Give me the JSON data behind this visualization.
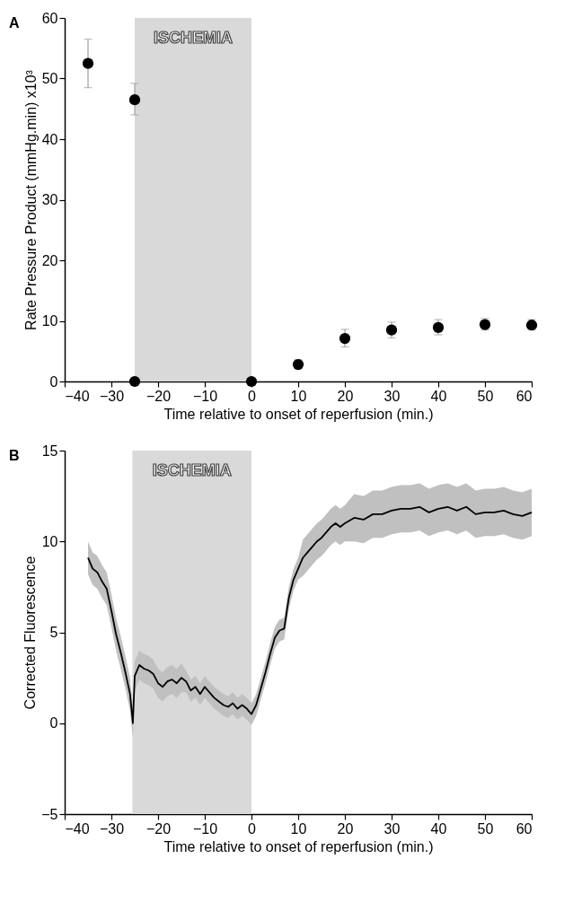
{
  "chart_data": [
    {
      "type": "scatter",
      "annotations": [
        "A"
      ],
      "xlabel": "Time relative to onset of reperfusion (min.)",
      "ylabel": "Rate Pressure Product (mmHg.min) x10³",
      "marker": "circle",
      "x": [
        -35,
        -25,
        -25,
        0,
        10,
        20,
        30,
        40,
        50,
        60
      ],
      "series": [
        {
          "color": "#000000",
          "values": [
            52.5,
            46.5,
            0,
            0,
            2.8,
            7.1,
            8.5,
            8.9,
            9.4,
            9.3
          ],
          "errors": [
            [
              48.5,
              56.5
            ],
            [
              44,
              49.2
            ],
            null,
            null,
            [
              2.1,
              3.6
            ],
            [
              5.7,
              8.6
            ],
            [
              7.2,
              9.8
            ],
            [
              7.7,
              10.2
            ],
            [
              8.5,
              10.4
            ],
            [
              8.5,
              10.2
            ]
          ]
        }
      ],
      "xlim": [
        -40,
        60
      ],
      "xticks": [
        -40,
        -30,
        -20,
        -10,
        0,
        10,
        20,
        30,
        40,
        50,
        60
      ],
      "ylim": [
        0,
        60
      ],
      "yticks": [
        0,
        10,
        20,
        30,
        40,
        50,
        60
      ],
      "grid": false,
      "bands": [
        {
          "axis": "x",
          "from": -25,
          "to": 0,
          "label": "ISCHEMIA",
          "color": "#d9d9d9"
        }
      ]
    },
    {
      "type": "line",
      "annotations": [
        "B"
      ],
      "xlabel": "Time relative to onset of reperfusion (min.)",
      "ylabel": "Corrected Fluorescence",
      "line_style": "solid",
      "x": [
        -35,
        -34,
        -33,
        -32,
        -31,
        -30,
        -29,
        -28,
        -27,
        -26,
        -25.4,
        -25,
        -24,
        -23,
        -22,
        -21,
        -20,
        -19,
        -18,
        -17,
        -16,
        -15,
        -14,
        -13,
        -12,
        -11,
        -10,
        -9,
        -8,
        -7,
        -6,
        -5,
        -4,
        -3,
        -2,
        -1,
        0,
        1,
        2,
        3,
        4,
        5,
        6,
        7,
        8,
        9,
        10,
        11,
        12,
        13,
        14,
        15,
        16,
        17,
        18,
        19,
        20,
        22,
        24,
        26,
        28,
        30,
        32,
        34,
        36,
        38,
        40,
        42,
        44,
        46,
        48,
        50,
        52,
        54,
        56,
        58,
        60
      ],
      "series": [
        {
          "color": "#000000",
          "values": [
            9.1,
            8.5,
            8.3,
            7.8,
            7.4,
            6.2,
            4.9,
            3.9,
            2.8,
            1.6,
            0.0,
            2.6,
            3.2,
            3.0,
            2.9,
            2.7,
            2.2,
            2.0,
            2.3,
            2.4,
            2.2,
            2.5,
            2.3,
            1.8,
            2.0,
            1.6,
            2.0,
            1.7,
            1.4,
            1.2,
            1.0,
            0.9,
            1.1,
            0.8,
            1.0,
            0.8,
            0.5,
            1.0,
            1.9,
            2.8,
            3.8,
            4.7,
            5.1,
            5.2,
            6.9,
            7.9,
            8.5,
            9.1,
            9.4,
            9.7,
            10.0,
            10.2,
            10.5,
            10.8,
            11.0,
            10.8,
            11.0,
            11.3,
            11.2,
            11.5,
            11.5,
            11.7,
            11.8,
            11.8,
            11.9,
            11.6,
            11.8,
            11.9,
            11.7,
            11.9,
            11.5,
            11.6,
            11.6,
            11.7,
            11.5,
            11.4,
            11.6
          ],
          "lower": [
            8.2,
            7.6,
            7.4,
            6.9,
            6.5,
            5.3,
            4.0,
            3.0,
            1.9,
            0.7,
            -0.8,
            1.8,
            2.4,
            2.2,
            2.1,
            1.9,
            1.4,
            1.2,
            1.5,
            1.6,
            1.4,
            1.7,
            1.7,
            1.2,
            1.4,
            1.0,
            1.4,
            1.1,
            0.8,
            0.6,
            0.4,
            0.3,
            0.5,
            0.2,
            0.4,
            0.2,
            -0.1,
            0.4,
            1.3,
            2.2,
            3.2,
            4.1,
            4.5,
            4.6,
            6.3,
            7.3,
            7.9,
            8.1,
            8.4,
            8.7,
            9.0,
            9.2,
            9.5,
            9.8,
            10.0,
            9.8,
            10.0,
            10.0,
            9.9,
            10.2,
            10.2,
            10.4,
            10.5,
            10.5,
            10.6,
            10.3,
            10.5,
            10.6,
            10.4,
            10.6,
            10.2,
            10.3,
            10.3,
            10.4,
            10.2,
            10.1,
            10.3
          ],
          "upper": [
            10.0,
            9.4,
            9.2,
            8.7,
            8.3,
            7.1,
            5.8,
            4.8,
            3.7,
            2.5,
            0.9,
            3.4,
            4.0,
            3.8,
            3.7,
            3.5,
            3.0,
            2.8,
            3.1,
            3.2,
            3.0,
            3.3,
            2.9,
            2.4,
            2.6,
            2.2,
            2.6,
            2.3,
            2.0,
            1.8,
            1.6,
            1.5,
            1.7,
            1.4,
            1.6,
            1.4,
            1.1,
            1.6,
            2.5,
            3.4,
            4.4,
            5.3,
            5.7,
            5.8,
            7.5,
            8.5,
            9.1,
            10.1,
            10.4,
            10.7,
            11.0,
            11.2,
            11.5,
            11.8,
            12.0,
            11.8,
            12.0,
            12.6,
            12.5,
            12.8,
            12.8,
            13.0,
            13.1,
            13.1,
            13.2,
            12.9,
            13.1,
            13.2,
            13.0,
            13.2,
            12.8,
            12.9,
            12.9,
            13.0,
            12.8,
            12.7,
            12.9
          ]
        }
      ],
      "xlim": [
        -40,
        60
      ],
      "xticks": [
        -40,
        -30,
        -20,
        -10,
        0,
        10,
        20,
        30,
        40,
        50,
        60
      ],
      "ylim": [
        -5,
        15
      ],
      "yticks": [
        -5,
        0,
        5,
        10,
        15
      ],
      "grid": false,
      "bands": [
        {
          "axis": "x",
          "from": -25.5,
          "to": 0,
          "label": "ISCHEMIA",
          "color": "#d9d9d9"
        }
      ]
    }
  ]
}
